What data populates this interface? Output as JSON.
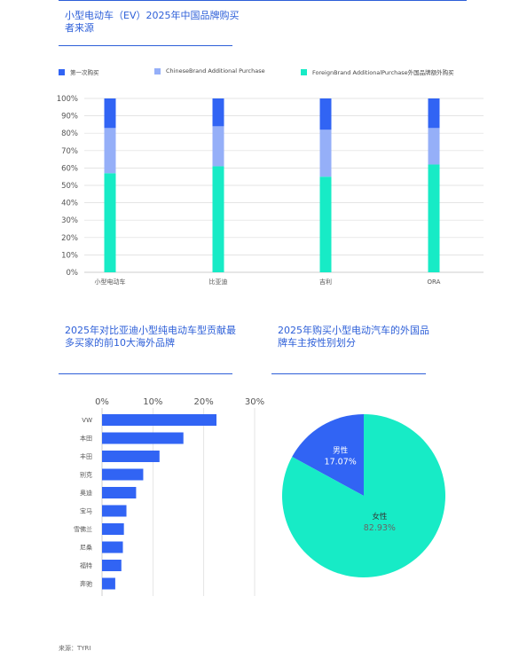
{
  "colors": {
    "title": "#2d5fd8",
    "first": "#3164f4",
    "chinese": "#95aff8",
    "foreign": "#17ebc6",
    "bar": "#3164f4",
    "grid": "#dcdcdc"
  },
  "chart1": {
    "title": "小型电动车（EV）2025年中国品牌购买者来源",
    "legend": [
      "第一次购买",
      "ChineseBrand Additional Purchase",
      "ForeignBrand AdditionalPurchase外国品牌额外购买"
    ]
  },
  "chart2": {
    "title": "2025年对比亚迪小型纯电动车型贡献最多买家的前10大海外品牌"
  },
  "chart3": {
    "title": "2025年购买小型电动汽车的外国品牌车主按性别划分"
  },
  "source": "来源：TYRI",
  "chart_data": [
    {
      "type": "bar",
      "stacked": true,
      "categories": [
        "小型电动车",
        "比亚迪",
        "吉利",
        "ORA"
      ],
      "series": [
        {
          "name": "ForeignBrand AdditionalPurchase外国品牌额外购买",
          "values": [
            57,
            61,
            55,
            62
          ]
        },
        {
          "name": "ChineseBrand Additional Purchase",
          "values": [
            26,
            23,
            27,
            21
          ]
        },
        {
          "name": "第一次购买",
          "values": [
            17,
            16,
            18,
            17
          ]
        }
      ],
      "yticks": [
        "0%",
        "10%",
        "20%",
        "30%",
        "40%",
        "50%",
        "60%",
        "70%",
        "80%",
        "90%",
        "100%"
      ],
      "ylim": [
        0,
        100
      ],
      "legend_position": "top",
      "grid": true
    },
    {
      "type": "bar",
      "orientation": "horizontal",
      "categories": [
        "VW",
        "本田",
        "丰田",
        "别克",
        "奥迪",
        "宝马",
        "雪佛兰",
        "尼桑",
        "福特",
        "奔驰"
      ],
      "values": [
        22.5,
        16,
        11.3,
        8.1,
        6.7,
        4.8,
        4.3,
        4.1,
        3.8,
        2.6
      ],
      "xticks": [
        "0%",
        "10%",
        "20%",
        "30%"
      ],
      "xlim": [
        0,
        30
      ],
      "grid": true
    },
    {
      "type": "pie",
      "labels": [
        "男性",
        "女性"
      ],
      "values": [
        17.07,
        82.93
      ],
      "value_labels": [
        "17.07%",
        "82.93%"
      ]
    }
  ]
}
